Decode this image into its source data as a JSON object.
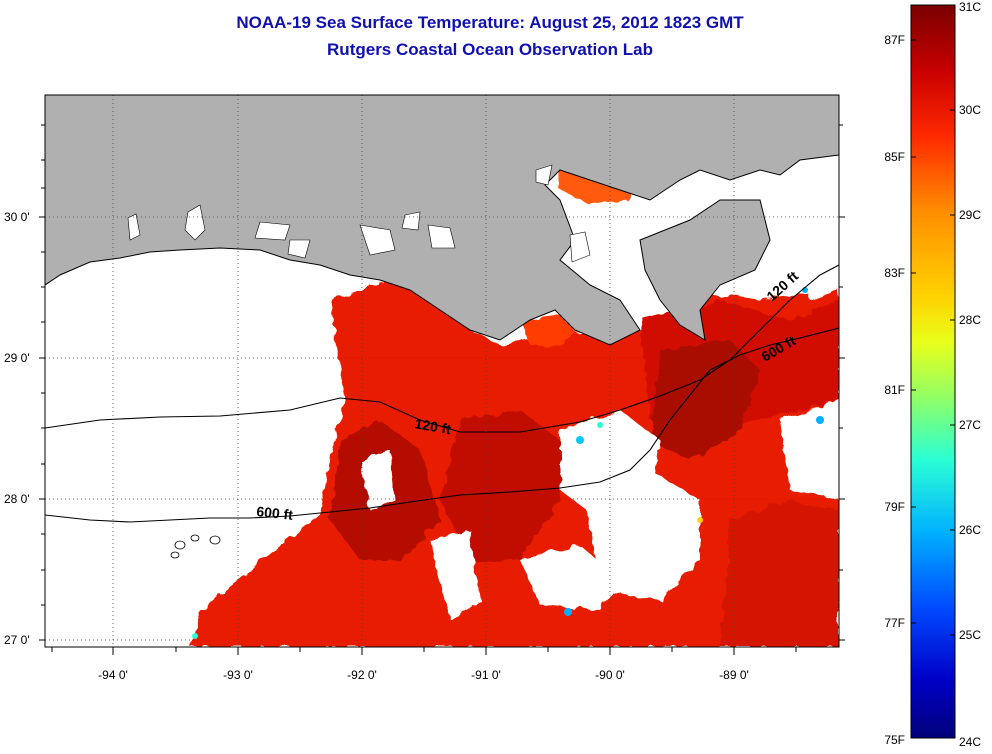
{
  "header": {
    "title": "NOAA-19 Sea Surface Temperature:  August 25, 2012 1823 GMT",
    "subtitle": "Rutgers Coastal Ocean Observation Lab"
  },
  "map": {
    "lat_labels": [
      "30 0'",
      "29 0'",
      "28 0'",
      "27 0'"
    ],
    "lon_labels": [
      "-94 0'",
      "-93 0'",
      "-92 0'",
      "-91 0'",
      "-90 0'",
      "-89 0'"
    ],
    "contour_labels": [
      "120 ft",
      "600 ft",
      "120 ft",
      "600 ft"
    ],
    "colors": {
      "land": "#b0b0b0",
      "no_data": "#ffffff"
    }
  },
  "colorbar": {
    "fahrenheit_labels": [
      "87F",
      "85F",
      "83F",
      "81F",
      "79F",
      "77F",
      "75F"
    ],
    "celsius_labels": [
      "31C",
      "30C",
      "29C",
      "28C",
      "27C",
      "26C",
      "25C",
      "24C"
    ],
    "gradient": [
      "#7a0000",
      "#c80000",
      "#ff2a00",
      "#ff8c00",
      "#ffd400",
      "#e8ff1a",
      "#8cff6a",
      "#2affd4",
      "#00b0ff",
      "#004cff",
      "#0000c8",
      "#00007a"
    ]
  }
}
